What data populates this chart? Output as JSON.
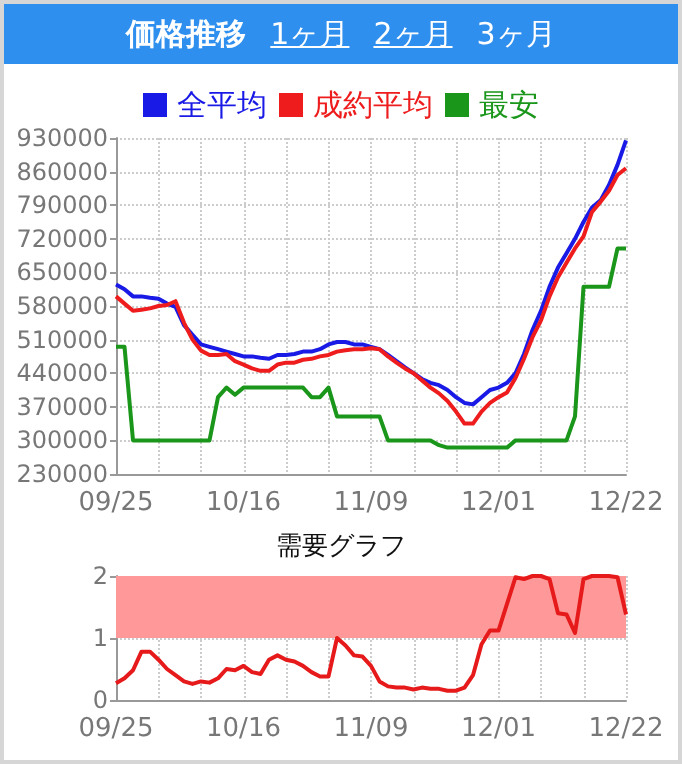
{
  "chart_data": [
    {
      "type": "line",
      "title": "価格推移",
      "annotations": [
        "1ヶ月",
        "2ヶ月",
        "3ヶ月"
      ],
      "categories": [
        "09/25",
        null,
        null,
        null,
        null,
        null,
        null,
        null,
        null,
        null,
        null,
        null,
        null,
        null,
        null,
        "10/16",
        null,
        null,
        null,
        null,
        null,
        null,
        null,
        null,
        null,
        null,
        null,
        null,
        null,
        null,
        "11/09",
        null,
        null,
        null,
        null,
        null,
        null,
        null,
        null,
        null,
        null,
        null,
        null,
        null,
        null,
        "12/01",
        null,
        null,
        null,
        null,
        null,
        null,
        null,
        null,
        null,
        null,
        null,
        null,
        null,
        null,
        "12/22"
      ],
      "series": [
        {
          "name": "全平均",
          "color": "#1a1ae6",
          "values": [
            625000,
            615000,
            600000,
            600000,
            597000,
            595000,
            585000,
            578000,
            540000,
            520000,
            500000,
            495000,
            490000,
            485000,
            480000,
            475000,
            475000,
            472000,
            470000,
            478000,
            478000,
            480000,
            485000,
            485000,
            490000,
            500000,
            505000,
            505000,
            500000,
            500000,
            495000,
            490000,
            478000,
            465000,
            452000,
            440000,
            428000,
            420000,
            415000,
            405000,
            390000,
            378000,
            375000,
            390000,
            405000,
            410000,
            420000,
            440000,
            480000,
            530000,
            570000,
            620000,
            660000,
            690000,
            720000,
            755000,
            785000,
            800000,
            832000,
            874000,
            925000
          ]
        },
        {
          "name": "成約平均",
          "color": "#ee1c1c",
          "values": [
            600000,
            585000,
            570000,
            572000,
            575000,
            580000,
            582000,
            590000,
            545000,
            510000,
            487000,
            478000,
            478000,
            480000,
            465000,
            458000,
            450000,
            445000,
            445000,
            458000,
            462000,
            462000,
            468000,
            470000,
            475000,
            478000,
            485000,
            488000,
            490000,
            490000,
            492000,
            490000,
            475000,
            462000,
            450000,
            440000,
            425000,
            410000,
            398000,
            382000,
            360000,
            335000,
            335000,
            360000,
            378000,
            390000,
            400000,
            430000,
            470000,
            515000,
            550000,
            600000,
            640000,
            670000,
            700000,
            725000,
            776000,
            797000,
            820000,
            853000,
            867000
          ]
        },
        {
          "name": "最安",
          "color": "#1a961a",
          "values": [
            495000,
            495000,
            300000,
            300000,
            300000,
            300000,
            300000,
            300000,
            300000,
            300000,
            300000,
            300000,
            390000,
            410000,
            395000,
            410000,
            410000,
            410000,
            410000,
            410000,
            410000,
            410000,
            410000,
            390000,
            390000,
            410000,
            350000,
            350000,
            350000,
            350000,
            350000,
            350000,
            300000,
            300000,
            300000,
            300000,
            300000,
            300000,
            290000,
            285000,
            285000,
            285000,
            285000,
            285000,
            285000,
            285000,
            285000,
            300000,
            300000,
            300000,
            300000,
            300000,
            300000,
            300000,
            350000,
            620000,
            620000,
            620000,
            620000,
            700000,
            700000
          ]
        }
      ],
      "ylim": [
        230000,
        930000
      ],
      "yticks": [
        230000,
        300000,
        370000,
        440000,
        510000,
        580000,
        650000,
        720000,
        790000,
        860000,
        930000
      ],
      "grid": true,
      "legend": "top",
      "marker": "none",
      "line_style": "solid"
    },
    {
      "type": "line",
      "title": "需要グラフ",
      "categories": [
        "09/25",
        null,
        null,
        null,
        null,
        null,
        null,
        null,
        null,
        null,
        null,
        null,
        null,
        null,
        null,
        "10/16",
        null,
        null,
        null,
        null,
        null,
        null,
        null,
        null,
        null,
        null,
        null,
        null,
        null,
        null,
        "11/09",
        null,
        null,
        null,
        null,
        null,
        null,
        null,
        null,
        null,
        null,
        null,
        null,
        null,
        null,
        "12/01",
        null,
        null,
        null,
        null,
        null,
        null,
        null,
        null,
        null,
        null,
        null,
        null,
        null,
        null,
        "12/22"
      ],
      "series": [
        {
          "color": "#e61a1a",
          "values": [
            0.27,
            0.35,
            0.48,
            0.78,
            0.78,
            0.65,
            0.5,
            0.4,
            0.3,
            0.26,
            0.3,
            0.28,
            0.35,
            0.5,
            0.48,
            0.55,
            0.45,
            0.42,
            0.65,
            0.72,
            0.65,
            0.62,
            0.55,
            0.45,
            0.38,
            0.38,
            1.0,
            0.88,
            0.72,
            0.7,
            0.55,
            0.3,
            0.22,
            0.2,
            0.2,
            0.17,
            0.2,
            0.18,
            0.18,
            0.15,
            0.15,
            0.2,
            0.4,
            0.9,
            1.12,
            1.12,
            1.55,
            1.98,
            1.95,
            2.0,
            2.0,
            1.95,
            1.4,
            1.38,
            1.08,
            1.95,
            2.0,
            2.0,
            2.0,
            1.98,
            1.38
          ]
        }
      ],
      "ylim": [
        0,
        2
      ],
      "yticks": [
        0,
        1,
        2
      ],
      "bands": [
        {
          "axis": "y",
          "from": 1,
          "to": 2,
          "color": "#ff9999"
        }
      ],
      "grid": true,
      "legend": false,
      "marker": "none",
      "line_style": "solid"
    }
  ]
}
